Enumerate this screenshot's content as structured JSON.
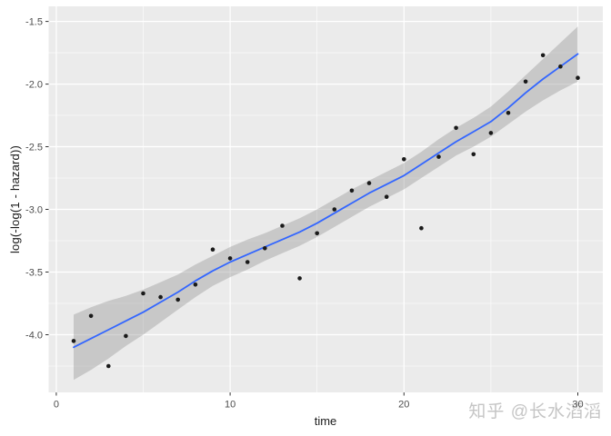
{
  "watermark": {
    "text": "知乎 @长水滔滔"
  },
  "chart_data": {
    "type": "scatter",
    "title": "",
    "xlabel": "time",
    "ylabel": "log(-log(1 - hazard))",
    "legend_position": "none",
    "grid": true,
    "xlim": [
      -0.44,
      31.44
    ],
    "ylim": [
      -4.46,
      -1.38
    ],
    "x_tick_values": [
      0,
      10,
      20,
      30
    ],
    "x_tick_labels": [
      "0",
      "10",
      "20",
      "30"
    ],
    "x_minor_values": [
      5,
      15,
      25
    ],
    "y_tick_values": [
      -1.5,
      -2.0,
      -2.5,
      -3.0,
      -3.5,
      -4.0
    ],
    "y_tick_labels": [
      "-1.5",
      "-2.0",
      "-2.5",
      "-3.0",
      "-3.5",
      "-4.0"
    ],
    "y_minor_values": [
      -1.75,
      -2.25,
      -2.75,
      -3.25,
      -3.75,
      -4.25
    ],
    "series": [
      {
        "name": "confidence-band",
        "geom": "ribbon",
        "x": [
          1,
          2,
          3,
          4,
          5,
          6,
          7,
          8,
          9,
          10,
          11,
          12,
          13,
          14,
          15,
          16,
          17,
          18,
          19,
          20,
          21,
          22,
          23,
          24,
          25,
          26,
          27,
          28,
          29,
          30
        ],
        "lower": [
          -4.36,
          -4.28,
          -4.19,
          -4.09,
          -4.0,
          -3.9,
          -3.8,
          -3.7,
          -3.61,
          -3.54,
          -3.48,
          -3.41,
          -3.35,
          -3.29,
          -3.22,
          -3.14,
          -3.06,
          -2.98,
          -2.91,
          -2.84,
          -2.75,
          -2.66,
          -2.57,
          -2.5,
          -2.42,
          -2.32,
          -2.22,
          -2.13,
          -2.05,
          -1.98
        ],
        "upper": [
          -3.84,
          -3.78,
          -3.73,
          -3.69,
          -3.64,
          -3.58,
          -3.52,
          -3.44,
          -3.37,
          -3.3,
          -3.24,
          -3.19,
          -3.13,
          -3.07,
          -3.0,
          -2.92,
          -2.84,
          -2.77,
          -2.7,
          -2.63,
          -2.54,
          -2.44,
          -2.35,
          -2.27,
          -2.18,
          -2.06,
          -1.93,
          -1.8,
          -1.67,
          -1.54
        ]
      },
      {
        "name": "loess-smooth",
        "geom": "line",
        "x": [
          1,
          2,
          3,
          4,
          5,
          6,
          7,
          8,
          9,
          10,
          11,
          12,
          13,
          14,
          15,
          16,
          17,
          18,
          19,
          20,
          21,
          22,
          23,
          24,
          25,
          26,
          27,
          28,
          29,
          30
        ],
        "y": [
          -4.1,
          -4.03,
          -3.96,
          -3.89,
          -3.82,
          -3.74,
          -3.66,
          -3.57,
          -3.49,
          -3.42,
          -3.36,
          -3.3,
          -3.24,
          -3.18,
          -3.11,
          -3.03,
          -2.95,
          -2.87,
          -2.8,
          -2.73,
          -2.64,
          -2.55,
          -2.46,
          -2.38,
          -2.3,
          -2.19,
          -2.07,
          -1.96,
          -1.86,
          -1.76
        ]
      },
      {
        "name": "observed-points",
        "geom": "point",
        "x": [
          1,
          2,
          3,
          4,
          5,
          6,
          7,
          8,
          9,
          10,
          11,
          12,
          13,
          14,
          15,
          16,
          17,
          18,
          19,
          20,
          21,
          22,
          23,
          24,
          25,
          26,
          27,
          28,
          29,
          30
        ],
        "y": [
          -4.05,
          -3.85,
          -4.25,
          -4.01,
          -3.67,
          -3.7,
          -3.72,
          -3.6,
          -3.32,
          -3.39,
          -3.42,
          -3.31,
          -3.13,
          -3.55,
          -3.19,
          -3.0,
          -2.85,
          -2.79,
          -2.9,
          -2.6,
          -3.15,
          -2.58,
          -2.35,
          -2.56,
          -2.39,
          -2.23,
          -1.98,
          -1.77,
          -1.86,
          -1.95
        ]
      }
    ],
    "colors": {
      "panel_bg": "#ebebeb",
      "grid": "#ffffff",
      "ribbon": "rgba(153,153,153,0.42)",
      "line": "#3366ff",
      "point": "#1a1a1a",
      "tick": "#333333",
      "tick_label": "#4d4d4d",
      "axis_title": "#1a1a1a"
    }
  }
}
